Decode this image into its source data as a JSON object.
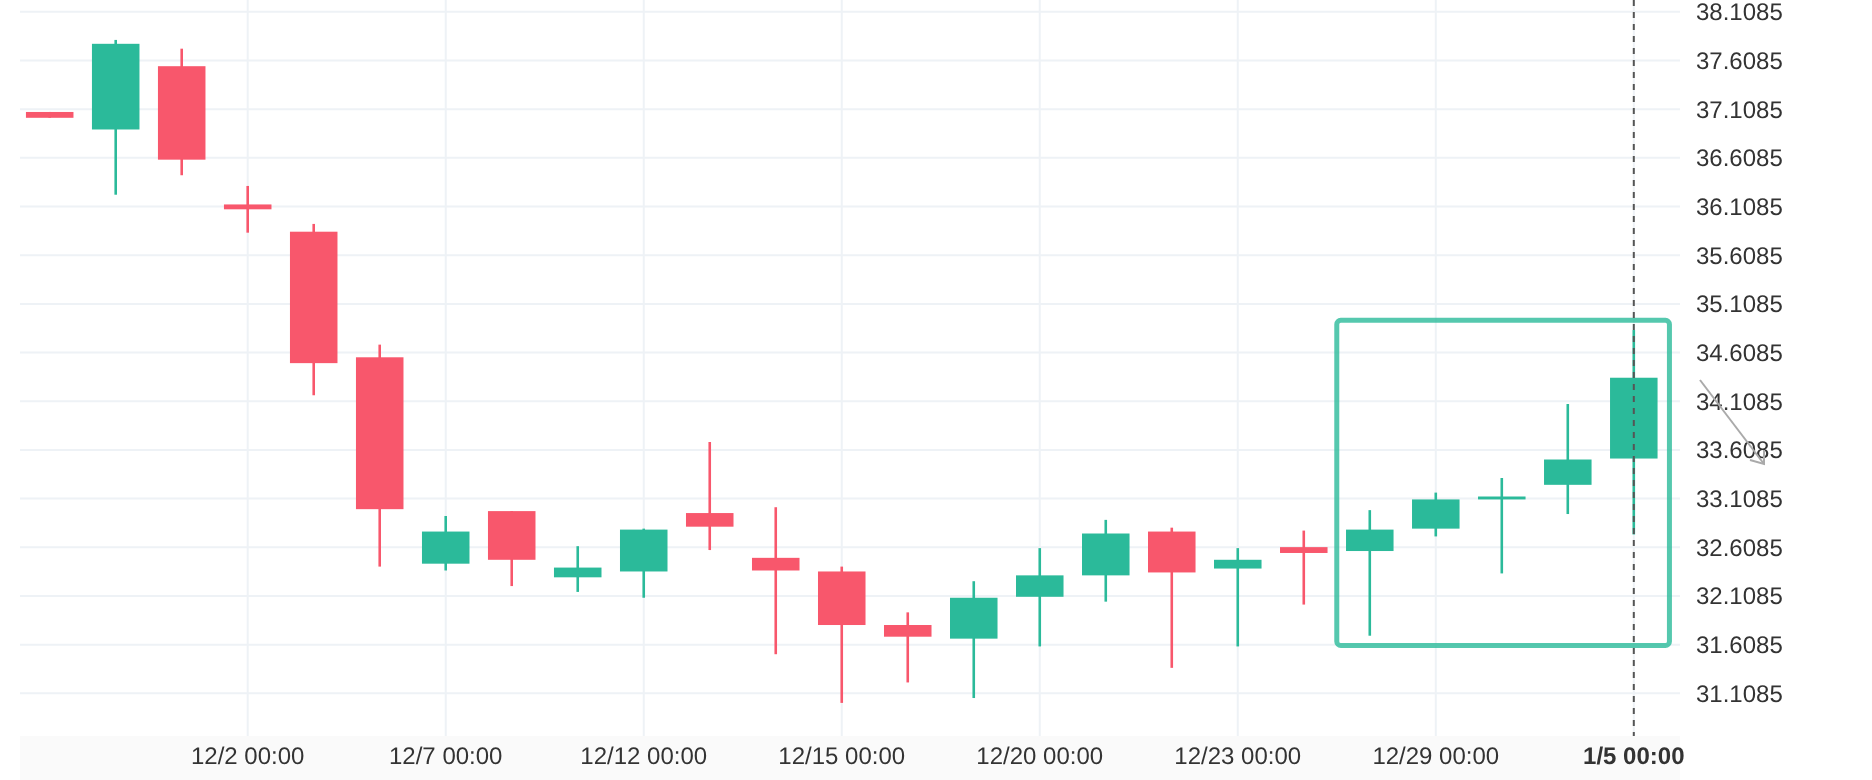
{
  "chart_data": {
    "type": "candlestick",
    "categories": [
      null,
      null,
      null,
      "12/2 00:00",
      null,
      null,
      "12/7 00:00",
      null,
      null,
      "12/12 00:00",
      null,
      null,
      "12/15 00:00",
      null,
      null,
      "12/20 00:00",
      null,
      null,
      "12/23 00:00",
      null,
      null,
      "12/29 00:00",
      null,
      null,
      "1/5 00:00"
    ],
    "ohlc": [
      [
        37.08,
        37.08,
        37.02,
        37.02
      ],
      [
        36.9,
        37.82,
        36.23,
        37.78
      ],
      [
        37.55,
        37.73,
        36.43,
        36.59
      ],
      [
        36.13,
        36.32,
        35.84,
        36.08
      ],
      [
        35.85,
        35.93,
        34.17,
        34.5
      ],
      [
        34.56,
        34.69,
        32.41,
        33.0
      ],
      [
        32.44,
        32.93,
        32.37,
        32.77
      ],
      [
        32.98,
        32.98,
        32.21,
        32.48
      ],
      [
        32.3,
        32.62,
        32.15,
        32.4
      ],
      [
        32.36,
        32.8,
        32.09,
        32.79
      ],
      [
        32.96,
        33.69,
        32.58,
        32.82
      ],
      [
        32.5,
        33.02,
        31.51,
        32.37
      ],
      [
        32.36,
        32.41,
        31.01,
        31.81
      ],
      [
        31.81,
        31.94,
        31.22,
        31.69
      ],
      [
        31.67,
        32.26,
        31.06,
        32.09
      ],
      [
        32.1,
        32.6,
        31.59,
        32.32
      ],
      [
        32.32,
        32.89,
        32.05,
        32.75
      ],
      [
        32.77,
        32.81,
        31.37,
        32.35
      ],
      [
        32.39,
        32.6,
        31.59,
        32.48
      ],
      [
        32.61,
        32.78,
        32.02,
        32.55
      ],
      [
        32.57,
        32.99,
        31.7,
        32.79
      ],
      [
        32.8,
        33.17,
        32.72,
        33.1
      ],
      [
        33.1,
        33.32,
        32.34,
        33.13
      ],
      [
        33.25,
        34.08,
        32.95,
        33.51
      ],
      [
        33.52,
        34.84,
        32.74,
        34.35
      ]
    ],
    "colors": [
      "#f8576c",
      "#2bba9a",
      "#f8576c",
      "#f8576c",
      "#f8576c",
      "#f8576c",
      "#2bba9a",
      "#f8576c",
      "#2bba9a",
      "#2bba9a",
      "#f8576c",
      "#f8576c",
      "#f8576c",
      "#f8576c",
      "#2bba9a",
      "#2bba9a",
      "#2bba9a",
      "#f8576c",
      "#2bba9a",
      "#f8576c",
      "#2bba9a",
      "#2bba9a",
      "#2bba9a",
      "#2bba9a",
      "#2bba9a"
    ],
    "ylim": [
      30.67,
      38.23
    ],
    "yticks": [
      31.1085,
      31.6085,
      32.1085,
      32.6085,
      33.1085,
      33.6085,
      34.1085,
      34.6085,
      35.1085,
      35.6085,
      36.1085,
      36.6085,
      37.1085,
      37.6085,
      38.1085
    ],
    "grid": true,
    "ref_lines": [
      {
        "axis": "x",
        "value": "1/5 00:00",
        "line_style": "dashed",
        "color": "#555555"
      }
    ]
  }
}
